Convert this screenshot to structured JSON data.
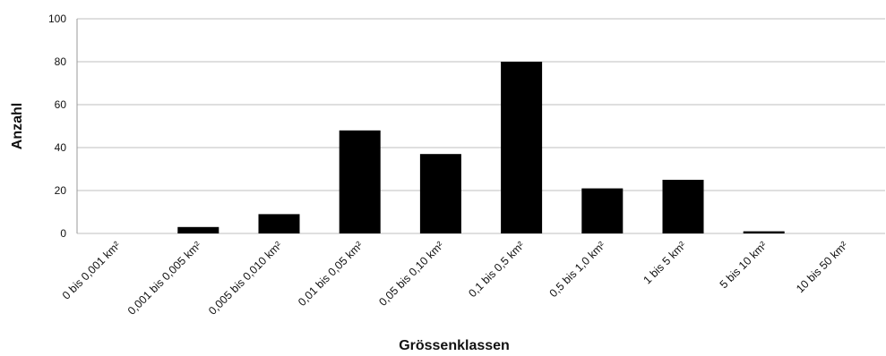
{
  "chart_data": {
    "type": "bar",
    "title": "",
    "xlabel": "Grössenklassen",
    "ylabel": "Anzahl",
    "categories": [
      "0 bis 0,001 km²",
      "0,001 bis 0,005 km²",
      "0,005 bis 0,010 km²",
      "0,01 bis 0,05 km²",
      "0,05 bis 0,10 km²",
      "0,1 bis 0,5 km²",
      "0,5 bis 1,0 km²",
      "1 bis 5 km²",
      "5 bis 10 km²",
      "10 bis 50 km²"
    ],
    "values": [
      0,
      3,
      9,
      48,
      37,
      80,
      21,
      25,
      1,
      0
    ],
    "ylim": [
      0,
      100
    ],
    "yticks": [
      0,
      20,
      40,
      60,
      80,
      100
    ],
    "grid": true,
    "bar_color": "#000000",
    "grid_color": "#bfbfbf"
  }
}
